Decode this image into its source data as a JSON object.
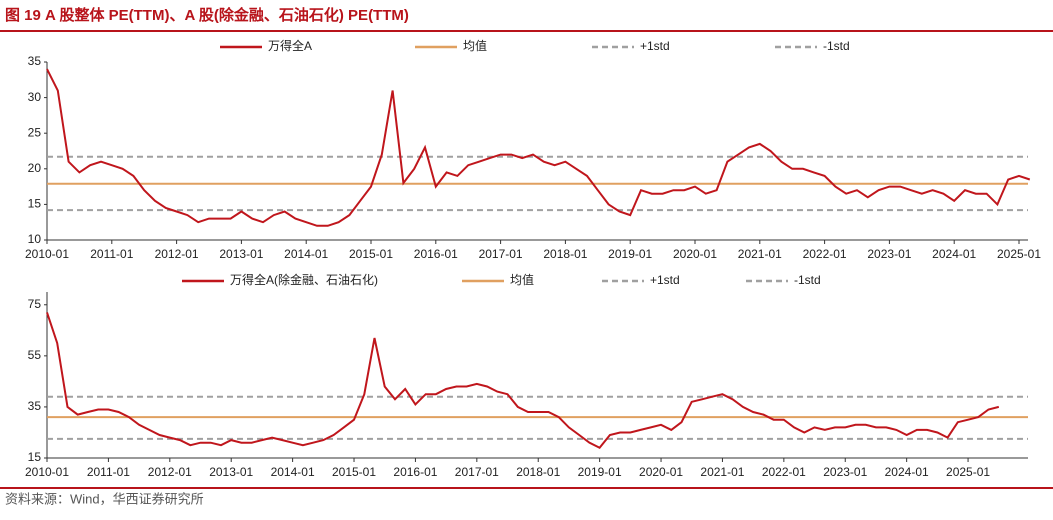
{
  "header": {
    "title": "图 19 A 股整体 PE(TTM)、A 股(除金融、石油石化) PE(TTM)"
  },
  "footer": {
    "source": "资料来源：Wind，华西证券研究所"
  },
  "chart_data": [
    {
      "type": "line",
      "x": [
        "2010-01",
        "2010-03",
        "2010-05",
        "2010-07",
        "2010-09",
        "2010-11",
        "2011-01",
        "2011-03",
        "2011-05",
        "2011-07",
        "2011-09",
        "2011-11",
        "2012-01",
        "2012-03",
        "2012-05",
        "2012-07",
        "2012-09",
        "2012-11",
        "2013-01",
        "2013-03",
        "2013-05",
        "2013-07",
        "2013-09",
        "2013-11",
        "2014-01",
        "2014-03",
        "2014-05",
        "2014-07",
        "2014-09",
        "2014-11",
        "2015-01",
        "2015-03",
        "2015-05",
        "2015-07",
        "2015-09",
        "2015-11",
        "2016-01",
        "2016-03",
        "2016-05",
        "2016-07",
        "2016-09",
        "2016-11",
        "2017-01",
        "2017-03",
        "2017-05",
        "2017-07",
        "2017-09",
        "2017-11",
        "2018-01",
        "2018-03",
        "2018-05",
        "2018-07",
        "2018-09",
        "2018-11",
        "2019-01",
        "2019-03",
        "2019-05",
        "2019-07",
        "2019-09",
        "2019-11",
        "2020-01",
        "2020-03",
        "2020-05",
        "2020-07",
        "2020-09",
        "2020-11",
        "2021-01",
        "2021-03",
        "2021-05",
        "2021-07",
        "2021-09",
        "2021-11",
        "2022-01",
        "2022-03",
        "2022-05",
        "2022-07",
        "2022-09",
        "2022-11",
        "2023-01",
        "2023-03",
        "2023-05",
        "2023-07",
        "2023-09",
        "2023-11",
        "2024-01",
        "2024-03",
        "2024-05",
        "2024-07",
        "2024-09",
        "2024-11",
        "2025-01",
        "2025-03"
      ],
      "series": [
        {
          "name": "万得全A",
          "color": "#c0161c",
          "values": [
            34,
            31,
            21,
            19.5,
            20.5,
            21,
            20.5,
            20,
            19,
            17,
            15.5,
            14.5,
            14,
            13.5,
            12.5,
            13,
            13,
            13,
            14,
            13,
            12.5,
            13.5,
            14,
            13,
            12.5,
            12,
            12,
            12.5,
            13.5,
            15.5,
            17.5,
            22,
            31,
            18,
            20,
            23,
            17.5,
            19.5,
            19,
            20.5,
            21,
            21.5,
            22,
            22,
            21.5,
            22,
            21,
            20.5,
            21,
            20,
            19,
            17,
            15,
            14,
            13.5,
            17,
            16.5,
            16.5,
            17,
            17,
            17.5,
            16.5,
            17,
            21,
            22,
            23,
            23.5,
            22.5,
            21,
            20,
            20,
            19.5,
            19,
            17.5,
            16.5,
            17,
            16,
            17,
            17.5,
            17.5,
            17,
            16.5,
            17,
            16.5,
            15.5,
            17,
            16.5,
            16.5,
            15,
            18.5,
            19,
            18.5
          ]
        }
      ],
      "hlines": [
        {
          "name": "均值",
          "value": 17.9,
          "color": "#e0a060",
          "dash": false
        },
        {
          "name": "+1std",
          "value": 21.7,
          "color": "#a0a0a0",
          "dash": true
        },
        {
          "name": "-1std",
          "value": 14.2,
          "color": "#a0a0a0",
          "dash": true
        }
      ],
      "ylim": [
        10,
        35
      ],
      "yticks": [
        10,
        15,
        20,
        25,
        30,
        35
      ],
      "xticks": [
        "2010-01",
        "2011-01",
        "2012-01",
        "2013-01",
        "2014-01",
        "2015-01",
        "2016-01",
        "2017-01",
        "2018-01",
        "2019-01",
        "2020-01",
        "2021-01",
        "2022-01",
        "2023-01",
        "2024-01",
        "2025-01"
      ]
    },
    {
      "type": "line",
      "x": [
        "2010-01",
        "2010-03",
        "2010-05",
        "2010-07",
        "2010-09",
        "2010-11",
        "2011-01",
        "2011-03",
        "2011-05",
        "2011-07",
        "2011-09",
        "2011-11",
        "2012-01",
        "2012-03",
        "2012-05",
        "2012-07",
        "2012-09",
        "2012-11",
        "2013-01",
        "2013-03",
        "2013-05",
        "2013-07",
        "2013-09",
        "2013-11",
        "2014-01",
        "2014-03",
        "2014-05",
        "2014-07",
        "2014-09",
        "2014-11",
        "2015-01",
        "2015-03",
        "2015-05",
        "2015-07",
        "2015-09",
        "2015-11",
        "2016-01",
        "2016-03",
        "2016-05",
        "2016-07",
        "2016-09",
        "2016-11",
        "2017-01",
        "2017-03",
        "2017-05",
        "2017-07",
        "2017-09",
        "2017-11",
        "2018-01",
        "2018-03",
        "2018-05",
        "2018-07",
        "2018-09",
        "2018-11",
        "2019-01",
        "2019-03",
        "2019-05",
        "2019-07",
        "2019-09",
        "2019-11",
        "2020-01",
        "2020-03",
        "2020-05",
        "2020-07",
        "2020-09",
        "2020-11",
        "2021-01",
        "2021-03",
        "2021-05",
        "2021-07",
        "2021-09",
        "2021-11",
        "2022-01",
        "2022-03",
        "2022-05",
        "2022-07",
        "2022-09",
        "2022-11",
        "2023-01",
        "2023-03",
        "2023-05",
        "2023-07",
        "2023-09",
        "2023-11",
        "2024-01",
        "2024-03",
        "2024-05",
        "2024-07",
        "2024-09",
        "2024-11",
        "2025-01",
        "2025-03",
        "2025-05",
        "2025-07"
      ],
      "series": [
        {
          "name": "万得全A(除金融、石油石化)",
          "color": "#c0161c",
          "values": [
            72,
            60,
            35,
            32,
            33,
            34,
            34,
            33,
            31,
            28,
            26,
            24,
            23,
            22,
            20,
            21,
            21,
            20,
            22,
            21,
            21,
            22,
            23,
            22,
            21,
            20,
            21,
            22,
            24,
            27,
            30,
            40,
            62,
            43,
            38,
            42,
            36,
            40,
            40,
            42,
            43,
            43,
            44,
            43,
            41,
            40,
            35,
            33,
            33,
            33,
            31,
            27,
            24,
            21,
            19,
            24,
            25,
            25,
            26,
            27,
            28,
            26,
            29,
            37,
            38,
            39,
            40,
            38,
            35,
            33,
            32,
            30,
            30,
            27,
            25,
            27,
            26,
            27,
            27,
            28,
            28,
            27,
            27,
            26,
            24,
            26,
            26,
            25,
            23,
            29,
            30,
            31,
            34,
            35
          ]
        }
      ],
      "hlines": [
        {
          "name": "均值",
          "value": 31,
          "color": "#e0a060",
          "dash": false
        },
        {
          "name": "+1std",
          "value": 39,
          "color": "#a0a0a0",
          "dash": true
        },
        {
          "name": "-1std",
          "value": 22.5,
          "color": "#a0a0a0",
          "dash": true
        }
      ],
      "ylim": [
        15,
        80
      ],
      "yticks": [
        15,
        35,
        55,
        75
      ],
      "xticks": [
        "2010-01",
        "2011-01",
        "2012-01",
        "2013-01",
        "2014-01",
        "2015-01",
        "2016-01",
        "2017-01",
        "2018-01",
        "2019-01",
        "2020-01",
        "2021-01",
        "2022-01",
        "2023-01",
        "2024-01",
        "2025-01"
      ]
    }
  ]
}
